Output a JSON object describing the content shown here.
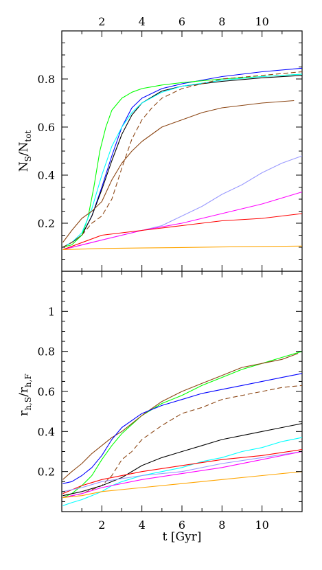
{
  "chart_data": [
    {
      "type": "line",
      "panel": "top",
      "title": "",
      "xlabel": "",
      "ylabel": {
        "base": "N",
        "sub1": "S",
        "mid": "/N",
        "sub2": "tot"
      },
      "xlim": [
        0,
        12
      ],
      "ylim": [
        0,
        1
      ],
      "top_axis_ticks": [
        "2",
        "4",
        "6",
        "8",
        "10"
      ],
      "top_axis_tick_values": [
        2,
        4,
        6,
        8,
        10
      ],
      "y_ticks": [
        "0.2",
        "0.4",
        "0.6",
        "0.8"
      ],
      "y_tick_values": [
        0.2,
        0.4,
        0.6,
        0.8
      ],
      "grid": false,
      "series": [
        {
          "color": "#0000ff",
          "style": "solid",
          "x": [
            0.05,
            0.5,
            1.0,
            1.5,
            2.0,
            2.5,
            3.0,
            3.5,
            4.0,
            5.0,
            6.0,
            8.0,
            10.0,
            12.0
          ],
          "y": [
            0.1,
            0.12,
            0.15,
            0.23,
            0.35,
            0.48,
            0.6,
            0.68,
            0.72,
            0.76,
            0.78,
            0.81,
            0.83,
            0.845
          ]
        },
        {
          "color": "#000000",
          "style": "solid",
          "x": [
            0.05,
            0.5,
            1.0,
            1.5,
            2.0,
            2.5,
            3.0,
            3.5,
            4.0,
            5.0,
            6.0,
            8.0,
            10.0,
            12.0
          ],
          "y": [
            0.1,
            0.12,
            0.15,
            0.23,
            0.34,
            0.46,
            0.57,
            0.65,
            0.7,
            0.75,
            0.77,
            0.79,
            0.805,
            0.815
          ]
        },
        {
          "color": "#00ff00",
          "style": "solid",
          "x": [
            0.05,
            0.5,
            1.0,
            1.3,
            1.6,
            1.9,
            2.2,
            2.5,
            3.0,
            3.5,
            4.0,
            5.0,
            6.0,
            8.0,
            10.0,
            12.0
          ],
          "y": [
            0.1,
            0.11,
            0.15,
            0.22,
            0.35,
            0.5,
            0.6,
            0.67,
            0.72,
            0.745,
            0.76,
            0.775,
            0.785,
            0.8,
            0.81,
            0.82
          ]
        },
        {
          "color": "#00ffff",
          "style": "solid",
          "x": [
            0.05,
            0.5,
            1.0,
            1.5,
            2.0,
            2.5,
            3.0,
            3.5,
            4.0,
            5.0,
            6.0,
            8.0,
            10.0,
            12.0
          ],
          "y": [
            0.1,
            0.12,
            0.16,
            0.26,
            0.4,
            0.52,
            0.6,
            0.66,
            0.7,
            0.745,
            0.77,
            0.795,
            0.81,
            0.82
          ]
        },
        {
          "color": "#8b4513",
          "style": "dashed",
          "x": [
            0.05,
            0.5,
            1.0,
            1.5,
            2.0,
            2.5,
            3.0,
            3.5,
            4.0,
            4.5,
            5.0,
            6.0,
            8.0,
            10.0,
            12.0
          ],
          "y": [
            0.1,
            0.12,
            0.15,
            0.2,
            0.23,
            0.3,
            0.43,
            0.55,
            0.63,
            0.68,
            0.72,
            0.76,
            0.8,
            0.815,
            0.83
          ]
        },
        {
          "color": "#8b4513",
          "style": "solid",
          "x": [
            0.05,
            0.5,
            1.0,
            1.5,
            2.0,
            2.5,
            3.0,
            3.5,
            4.0,
            5.0,
            6.0,
            7.0,
            8.0,
            9.0,
            10.0,
            11.6
          ],
          "y": [
            0.12,
            0.17,
            0.22,
            0.25,
            0.29,
            0.38,
            0.45,
            0.5,
            0.54,
            0.6,
            0.63,
            0.66,
            0.68,
            0.69,
            0.7,
            0.71
          ]
        },
        {
          "color": "#9999ff",
          "style": "solid",
          "x": [
            0.05,
            2.0,
            4.0,
            5.0,
            6.0,
            7.0,
            8.0,
            9.0,
            10.0,
            11.0,
            12.0
          ],
          "y": [
            0.09,
            0.13,
            0.17,
            0.19,
            0.23,
            0.27,
            0.32,
            0.36,
            0.41,
            0.45,
            0.48
          ]
        },
        {
          "color": "#ff00ff",
          "style": "solid",
          "x": [
            0.05,
            2.0,
            4.0,
            6.0,
            8.0,
            10.0,
            12.0
          ],
          "y": [
            0.09,
            0.13,
            0.17,
            0.2,
            0.24,
            0.28,
            0.33
          ]
        },
        {
          "color": "#ff0000",
          "style": "solid",
          "x": [
            0.05,
            2.0,
            4.0,
            6.0,
            8.0,
            10.0,
            12.0
          ],
          "y": [
            0.09,
            0.15,
            0.17,
            0.19,
            0.21,
            0.22,
            0.24
          ]
        },
        {
          "color": "#ffa500",
          "style": "solid",
          "x": [
            0.05,
            2.0,
            4.0,
            6.0,
            8.0,
            10.0,
            12.0
          ],
          "y": [
            0.09,
            0.095,
            0.097,
            0.099,
            0.101,
            0.103,
            0.105
          ]
        }
      ]
    },
    {
      "type": "line",
      "panel": "bottom",
      "title": "",
      "xlabel": "t [Gyr]",
      "ylabel": {
        "base": "r",
        "sub1": "h,S",
        "mid": "/r",
        "sub2": "h,F"
      },
      "xlim": [
        0,
        12
      ],
      "ylim": [
        0,
        1.2
      ],
      "x_ticks": [
        "2",
        "4",
        "6",
        "8",
        "10"
      ],
      "x_tick_values": [
        2,
        4,
        6,
        8,
        10
      ],
      "y_ticks": [
        "0.2",
        "0.4",
        "0.6",
        "0.8",
        "1"
      ],
      "y_tick_values": [
        0.2,
        0.4,
        0.6,
        0.8,
        1.0
      ],
      "grid": false,
      "series": [
        {
          "color": "#00ff00",
          "style": "solid",
          "x": [
            0.05,
            0.5,
            1.0,
            1.5,
            2.0,
            2.5,
            3.0,
            4.0,
            5.0,
            6.0,
            7.0,
            8.0,
            9.0,
            10.0,
            11.0,
            12.0
          ],
          "y": [
            0.07,
            0.09,
            0.13,
            0.18,
            0.26,
            0.33,
            0.39,
            0.48,
            0.54,
            0.58,
            0.63,
            0.67,
            0.71,
            0.74,
            0.77,
            0.8
          ]
        },
        {
          "color": "#8b4513",
          "style": "solid",
          "x": [
            0.05,
            0.5,
            1.0,
            1.5,
            2.0,
            2.5,
            3.0,
            3.5,
            4.0,
            5.0,
            6.0,
            7.0,
            8.0,
            9.0,
            10.0,
            11.0,
            11.8
          ],
          "y": [
            0.16,
            0.2,
            0.24,
            0.29,
            0.33,
            0.37,
            0.4,
            0.44,
            0.48,
            0.55,
            0.6,
            0.64,
            0.68,
            0.72,
            0.74,
            0.76,
            0.79
          ]
        },
        {
          "color": "#0000ff",
          "style": "solid",
          "x": [
            0.05,
            0.5,
            1.0,
            1.5,
            2.0,
            2.5,
            3.0,
            4.0,
            5.0,
            6.0,
            7.0,
            8.0,
            9.0,
            10.0,
            11.0,
            12.0
          ],
          "y": [
            0.14,
            0.15,
            0.18,
            0.22,
            0.28,
            0.36,
            0.42,
            0.49,
            0.53,
            0.56,
            0.59,
            0.61,
            0.63,
            0.65,
            0.67,
            0.69
          ]
        },
        {
          "color": "#8b4513",
          "style": "dashed",
          "x": [
            0.05,
            1.0,
            2.0,
            2.5,
            3.0,
            3.5,
            4.0,
            5.0,
            6.0,
            7.0,
            8.0,
            9.0,
            10.0,
            11.0,
            12.0
          ],
          "y": [
            0.07,
            0.09,
            0.13,
            0.18,
            0.26,
            0.3,
            0.36,
            0.43,
            0.49,
            0.52,
            0.56,
            0.58,
            0.6,
            0.62,
            0.63
          ]
        },
        {
          "color": "#000000",
          "style": "solid",
          "x": [
            0.05,
            1.0,
            2.0,
            3.0,
            4.0,
            5.0,
            6.0,
            7.0,
            8.0,
            9.0,
            10.0,
            11.0,
            12.0
          ],
          "y": [
            0.08,
            0.1,
            0.13,
            0.17,
            0.23,
            0.27,
            0.3,
            0.33,
            0.36,
            0.38,
            0.4,
            0.42,
            0.44
          ]
        },
        {
          "color": "#00ffff",
          "style": "solid",
          "x": [
            0.05,
            0.5,
            1.0,
            1.5,
            2.0,
            2.5,
            3.0,
            4.0,
            5.0,
            6.0,
            7.0,
            8.0,
            9.0,
            10.0,
            11.0,
            12.0
          ],
          "y": [
            0.03,
            0.045,
            0.06,
            0.08,
            0.1,
            0.13,
            0.15,
            0.18,
            0.2,
            0.22,
            0.25,
            0.27,
            0.3,
            0.32,
            0.35,
            0.37
          ]
        },
        {
          "color": "#ff0000",
          "style": "solid",
          "x": [
            0.05,
            1.0,
            2.0,
            4.0,
            6.0,
            8.0,
            10.0,
            12.0
          ],
          "y": [
            0.09,
            0.13,
            0.16,
            0.2,
            0.23,
            0.26,
            0.28,
            0.31
          ]
        },
        {
          "color": "#9999ff",
          "style": "solid",
          "x": [
            0.05,
            1.0,
            2.0,
            4.0,
            6.0,
            8.0,
            10.0,
            12.0
          ],
          "y": [
            0.1,
            0.12,
            0.15,
            0.18,
            0.2,
            0.24,
            0.27,
            0.3
          ]
        },
        {
          "color": "#ff00ff",
          "style": "solid",
          "x": [
            0.05,
            1.0,
            2.0,
            4.0,
            6.0,
            8.0,
            10.0,
            12.0
          ],
          "y": [
            0.07,
            0.09,
            0.12,
            0.16,
            0.19,
            0.22,
            0.26,
            0.3
          ]
        },
        {
          "color": "#ffa500",
          "style": "solid",
          "x": [
            0.05,
            1.0,
            2.0,
            4.0,
            6.0,
            8.0,
            10.0,
            12.0
          ],
          "y": [
            0.07,
            0.08,
            0.1,
            0.12,
            0.14,
            0.16,
            0.18,
            0.2
          ]
        }
      ]
    }
  ]
}
